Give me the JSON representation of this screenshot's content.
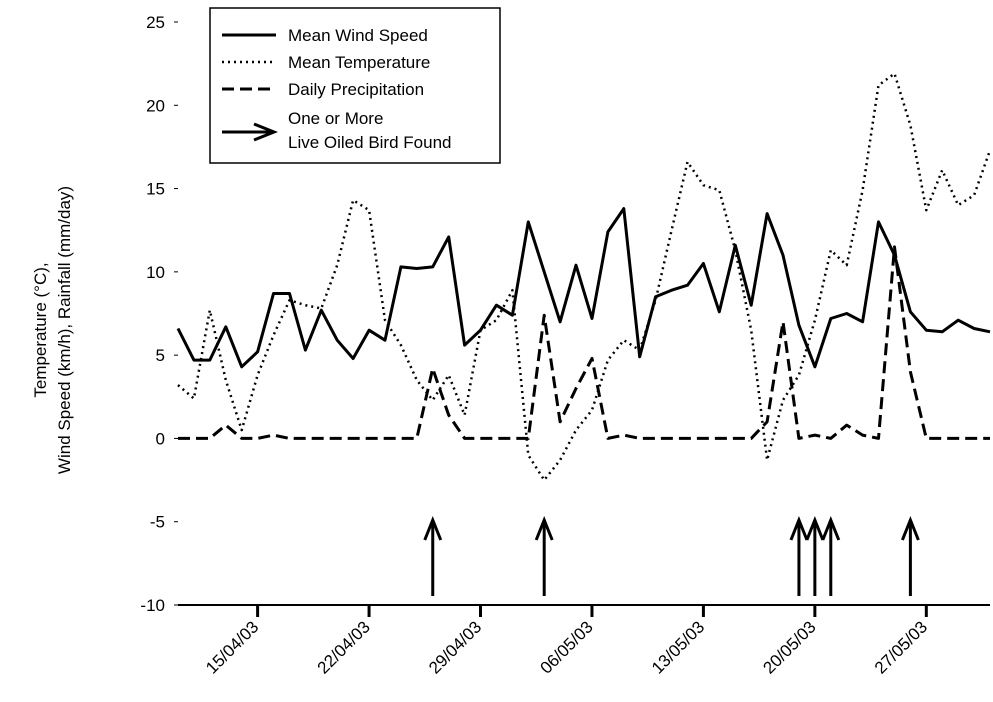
{
  "chart_data": {
    "type": "line",
    "ylabel": [
      "Temperature (°C),",
      "Wind Speed (km/h), Rainfall (mm/day)"
    ],
    "x": [
      "10/04/03",
      "11/04/03",
      "12/04/03",
      "13/04/03",
      "14/04/03",
      "15/04/03",
      "16/04/03",
      "17/04/03",
      "18/04/03",
      "19/04/03",
      "20/04/03",
      "21/04/03",
      "22/04/03",
      "23/04/03",
      "24/04/03",
      "25/04/03",
      "26/04/03",
      "27/04/03",
      "28/04/03",
      "29/04/03",
      "30/04/03",
      "01/05/03",
      "02/05/03",
      "03/05/03",
      "04/05/03",
      "05/05/03",
      "06/05/03",
      "07/05/03",
      "08/05/03",
      "09/05/03",
      "10/05/03",
      "11/05/03",
      "12/05/03",
      "13/05/03",
      "14/05/03",
      "15/05/03",
      "16/05/03",
      "17/05/03",
      "18/05/03",
      "19/05/03",
      "20/05/03",
      "21/05/03",
      "22/05/03",
      "23/05/03",
      "24/05/03",
      "25/05/03",
      "26/05/03",
      "27/05/03",
      "28/05/03",
      "29/05/03",
      "30/05/03",
      "31/05/03"
    ],
    "series": [
      {
        "name": "Mean Wind Speed",
        "color": "#000000",
        "dash": "solid",
        "values": [
          6.6,
          4.7,
          4.7,
          6.7,
          4.3,
          5.2,
          8.7,
          8.7,
          5.3,
          7.7,
          5.9,
          4.8,
          6.5,
          5.9,
          10.3,
          10.2,
          10.3,
          12.1,
          5.6,
          6.5,
          8.0,
          7.4,
          13.0,
          10.0,
          7.0,
          10.4,
          7.2,
          12.4,
          13.8,
          4.9,
          8.5,
          8.9,
          9.2,
          10.5,
          7.6,
          11.6,
          8.0,
          13.5,
          11.0,
          6.8,
          4.3,
          7.2,
          7.5,
          7.0,
          13.0,
          11.0,
          7.6,
          6.5,
          6.4,
          7.1,
          6.6,
          6.4
        ]
      },
      {
        "name": "Mean Temperature",
        "color": "#000000",
        "dash": "dotted",
        "values": [
          3.2,
          2.4,
          7.7,
          3.5,
          0.5,
          3.8,
          6.2,
          8.3,
          8.0,
          7.8,
          10.4,
          14.3,
          13.7,
          7.1,
          5.6,
          3.5,
          2.3,
          3.8,
          1.4,
          6.5,
          7.1,
          8.9,
          -1.0,
          -2.5,
          -1.3,
          0.5,
          1.7,
          4.7,
          5.9,
          5.3,
          8.3,
          12.5,
          16.6,
          15.2,
          14.9,
          11.3,
          6.5,
          -1.3,
          2.3,
          3.8,
          7.1,
          11.3,
          10.4,
          14.9,
          21.2,
          21.9,
          18.8,
          13.7,
          16.1,
          14.0,
          14.6,
          17.3
        ]
      },
      {
        "name": "Daily Precipitation",
        "color": "#000000",
        "dash": "dashed",
        "values": [
          0,
          0,
          0,
          0.8,
          0,
          0,
          0.2,
          0,
          0,
          0,
          0,
          0,
          0,
          0,
          0,
          0,
          4.2,
          1.4,
          0,
          0,
          0,
          0,
          0,
          7.4,
          1.0,
          3.0,
          4.8,
          0,
          0.2,
          0,
          0,
          0,
          0,
          0,
          0,
          0,
          0,
          1.0,
          7.0,
          0,
          0.2,
          0,
          0.8,
          0.2,
          0,
          11.5,
          4.0,
          0,
          0,
          0,
          0,
          0
        ]
      }
    ],
    "events": {
      "name": [
        "One or More",
        "Live Oiled Bird Found"
      ],
      "color": "#000000",
      "x": [
        "26/04/03",
        "03/05/03",
        "19/05/03",
        "20/05/03",
        "21/05/03",
        "26/05/03"
      ]
    },
    "xlim": [
      "10/04/03",
      "31/05/03"
    ],
    "xticks": [
      "15/04/03",
      "22/04/03",
      "29/04/03",
      "06/05/03",
      "13/05/03",
      "20/05/03",
      "27/05/03"
    ],
    "ylim": [
      -10,
      25
    ],
    "yticks": [
      -10,
      -5,
      0,
      5,
      10,
      15,
      20,
      25
    ],
    "legend": "top-left"
  }
}
